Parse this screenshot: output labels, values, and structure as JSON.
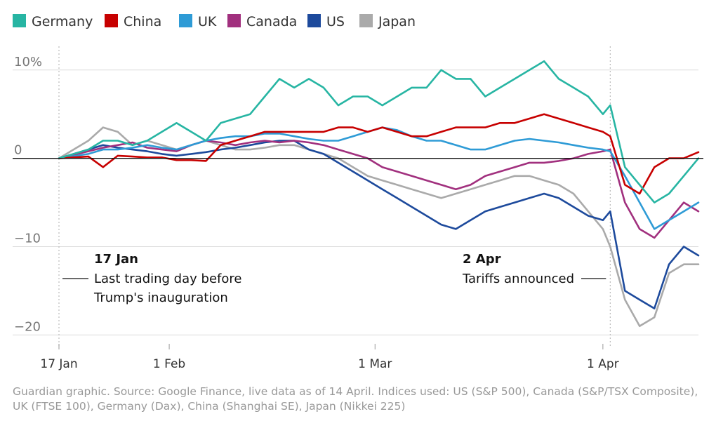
{
  "footer": "Guardian graphic. Source: Google Finance, live data as of 14 April. Indices used: US (S&P 500), Canada (S&P/TSX Composite), UK (FTSE 100), Germany (Dax), China (Shanghai SE), Japan (Nikkei 225)",
  "chart_data": {
    "type": "line",
    "title": "",
    "xlabel": "",
    "ylabel": "",
    "ylim": [
      -21,
      13
    ],
    "y_ticks": [
      {
        "value": 10,
        "label": "10%"
      },
      {
        "value": 0,
        "label": "0"
      },
      {
        "value": -10,
        "label": "−10"
      },
      {
        "value": -20,
        "label": "−20"
      }
    ],
    "x_ticks": [
      {
        "value": 0,
        "label": "17 Jan"
      },
      {
        "value": 15,
        "label": "1 Feb"
      },
      {
        "value": 43,
        "label": "1 Mar"
      },
      {
        "value": 74,
        "label": "1 Apr"
      }
    ],
    "xlim": [
      0,
      87
    ],
    "legend_position": "top-left",
    "grid": "horizontal",
    "annotations": [
      {
        "x": 0,
        "date": "17 Jan",
        "text": [
          "Last trading day before",
          "Trump's inauguration"
        ],
        "side": "right"
      },
      {
        "x": 75,
        "date": "2 Apr",
        "text": [
          "Tariffs announced"
        ],
        "side": "left"
      }
    ],
    "series": [
      {
        "name": "Germany",
        "color": "#27b5a3",
        "x": [
          0,
          4,
          6,
          8,
          10,
          12,
          14,
          16,
          18,
          20,
          22,
          24,
          26,
          28,
          30,
          32,
          34,
          36,
          38,
          40,
          42,
          44,
          46,
          48,
          50,
          52,
          54,
          56,
          58,
          60,
          62,
          64,
          66,
          68,
          70,
          72,
          74,
          75,
          77,
          79,
          81,
          83,
          85,
          87
        ],
        "y": [
          0,
          1,
          2,
          2,
          1.5,
          2,
          3,
          4,
          3,
          2,
          4,
          4.5,
          5,
          7,
          9,
          8,
          9,
          8,
          6,
          7,
          7,
          6,
          7,
          8,
          8,
          10,
          9,
          9,
          7,
          8,
          9,
          10,
          11,
          9,
          8,
          7,
          5,
          6,
          -1,
          -3,
          -5,
          -4,
          -2,
          0
        ]
      },
      {
        "name": "China",
        "color": "#c70000",
        "x": [
          0,
          4,
          6,
          8,
          10,
          12,
          14,
          16,
          18,
          20,
          22,
          24,
          26,
          28,
          30,
          32,
          34,
          36,
          38,
          40,
          42,
          44,
          46,
          48,
          50,
          52,
          54,
          56,
          58,
          60,
          62,
          64,
          66,
          68,
          70,
          72,
          74,
          75,
          77,
          79,
          81,
          83,
          85,
          87
        ],
        "y": [
          0,
          0.2,
          -1,
          0.3,
          0.2,
          0.1,
          0.1,
          -0.2,
          -0.2,
          -0.3,
          1.5,
          2,
          2.5,
          3,
          3,
          3,
          3,
          3,
          3.5,
          3.5,
          3,
          3.5,
          3,
          2.5,
          2.5,
          3,
          3.5,
          3.5,
          3.5,
          4,
          4,
          4.5,
          5,
          4.5,
          4,
          3.5,
          3,
          2.5,
          -3,
          -4,
          -1,
          0,
          0,
          0.7
        ]
      },
      {
        "name": "UK",
        "color": "#2e9bd6",
        "x": [
          0,
          4,
          6,
          8,
          10,
          12,
          14,
          16,
          18,
          20,
          22,
          24,
          26,
          28,
          30,
          32,
          34,
          36,
          38,
          40,
          42,
          44,
          46,
          48,
          50,
          52,
          54,
          56,
          58,
          60,
          62,
          64,
          66,
          68,
          70,
          72,
          74,
          75,
          77,
          79,
          81,
          83,
          85,
          87
        ],
        "y": [
          0,
          0.5,
          1,
          1,
          1.2,
          1.5,
          1.2,
          1,
          1.5,
          2,
          2.3,
          2.5,
          2.5,
          2.8,
          2.8,
          2.5,
          2.2,
          2,
          2,
          2.5,
          3,
          3.5,
          3.2,
          2.5,
          2,
          2,
          1.5,
          1,
          1,
          1.5,
          2,
          2.2,
          2,
          1.8,
          1.5,
          1.2,
          1,
          0.8,
          -2,
          -5,
          -8,
          -7,
          -6,
          -5
        ]
      },
      {
        "name": "Canada",
        "color": "#a1307e",
        "x": [
          0,
          4,
          6,
          8,
          10,
          12,
          14,
          16,
          18,
          20,
          22,
          24,
          26,
          28,
          30,
          32,
          34,
          36,
          38,
          40,
          42,
          44,
          46,
          48,
          50,
          52,
          54,
          56,
          58,
          60,
          62,
          64,
          66,
          68,
          70,
          72,
          74,
          75,
          77,
          79,
          81,
          83,
          85,
          87
        ],
        "y": [
          0,
          0.8,
          1.2,
          1.5,
          1.8,
          1.2,
          1,
          0.8,
          1.5,
          2,
          1.8,
          1.5,
          1.8,
          2,
          1.8,
          2,
          1.8,
          1.5,
          1,
          0.5,
          0,
          -1,
          -1.5,
          -2,
          -2.5,
          -3,
          -3.5,
          -3,
          -2,
          -1.5,
          -1,
          -0.5,
          -0.5,
          -0.3,
          0,
          0.5,
          0.8,
          1,
          -5,
          -8,
          -9,
          -7,
          -5,
          -6
        ]
      },
      {
        "name": "US",
        "color": "#1d4a9c",
        "x": [
          0,
          4,
          6,
          8,
          10,
          12,
          14,
          16,
          18,
          20,
          22,
          24,
          26,
          28,
          30,
          32,
          34,
          36,
          38,
          40,
          42,
          44,
          46,
          48,
          50,
          52,
          54,
          56,
          58,
          60,
          62,
          64,
          66,
          68,
          70,
          72,
          74,
          75,
          77,
          79,
          81,
          83,
          85,
          87
        ],
        "y": [
          0,
          1,
          1.5,
          1.2,
          1,
          0.8,
          0.5,
          0.3,
          0.5,
          0.7,
          1,
          1.2,
          1.5,
          1.8,
          2,
          2,
          1,
          0.5,
          -0.5,
          -1.5,
          -2.5,
          -3.5,
          -4.5,
          -5.5,
          -6.5,
          -7.5,
          -8,
          -7,
          -6,
          -5.5,
          -5,
          -4.5,
          -4,
          -4.5,
          -5.5,
          -6.5,
          -7,
          -6,
          -15,
          -16,
          -17,
          -12,
          -10,
          -11
        ]
      },
      {
        "name": "Japan",
        "color": "#aaaaaa",
        "x": [
          0,
          4,
          6,
          8,
          10,
          12,
          14,
          16,
          18,
          20,
          22,
          24,
          26,
          28,
          30,
          32,
          34,
          36,
          38,
          40,
          42,
          44,
          46,
          48,
          50,
          52,
          54,
          56,
          58,
          60,
          62,
          64,
          66,
          68,
          70,
          72,
          74,
          75,
          77,
          79,
          81,
          83,
          85,
          87
        ],
        "y": [
          0,
          2,
          3.5,
          3,
          1.5,
          2,
          1.5,
          1,
          1.5,
          2,
          1.5,
          1,
          1,
          1.2,
          1.5,
          1.5,
          1,
          0.5,
          0,
          -1,
          -2,
          -2.5,
          -3,
          -3.5,
          -4,
          -4.5,
          -4,
          -3.5,
          -3,
          -2.5,
          -2,
          -2,
          -2.5,
          -3,
          -4,
          -6,
          -8,
          -10,
          -16,
          -19,
          -18,
          -13,
          -12,
          -12
        ]
      }
    ]
  }
}
